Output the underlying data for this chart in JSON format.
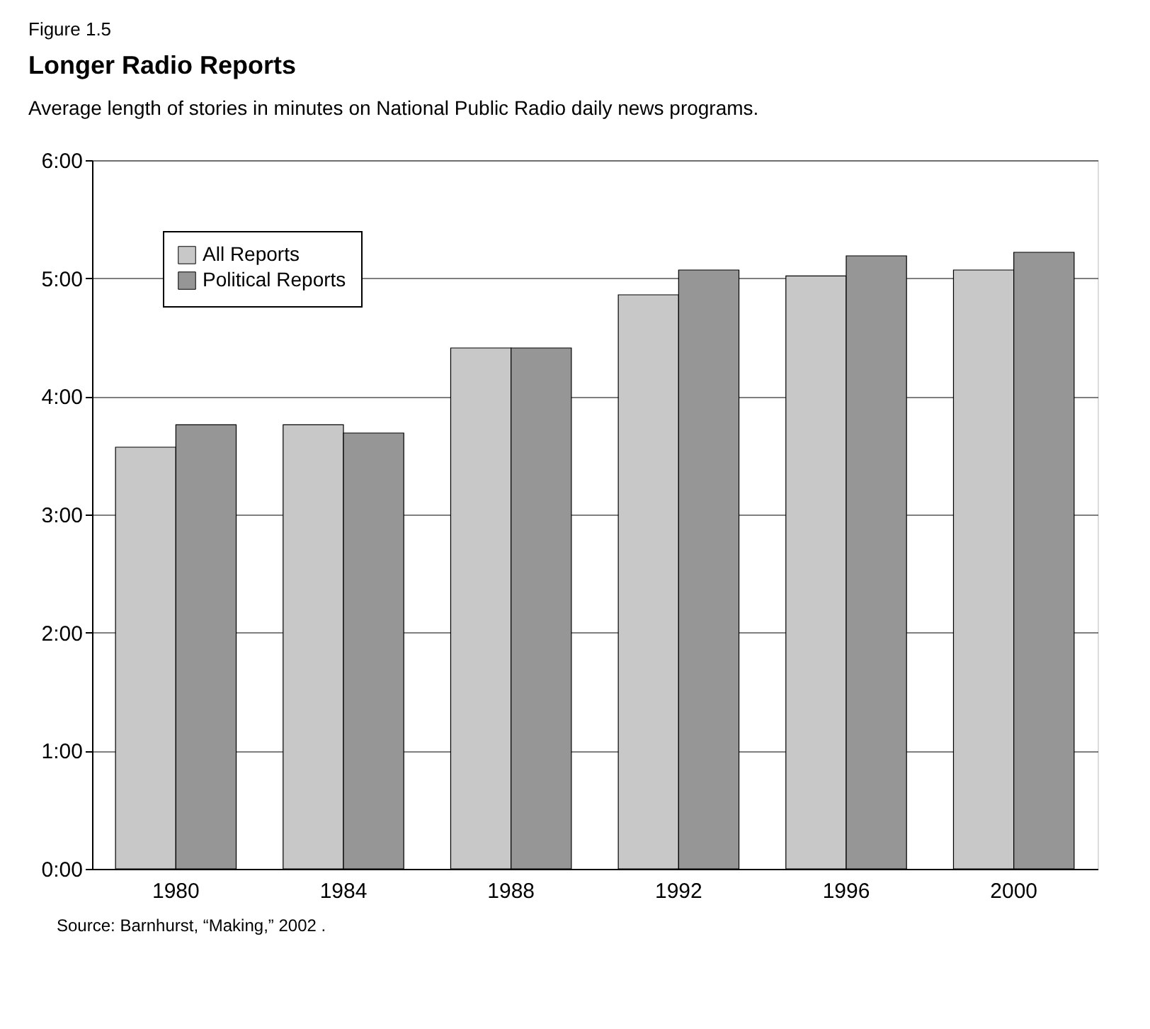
{
  "chart_data": {
    "type": "bar",
    "title": "Longer Radio Reports",
    "subtitle": "Average length of stories in minutes on National Public Radio daily news programs.",
    "annotations": [
      "Figure 1.5",
      "Source: Barnhurst, “Making,” 2002 ."
    ],
    "categories": [
      "1980",
      "1984",
      "1988",
      "1992",
      "1996",
      "2000"
    ],
    "series": [
      {
        "name": "All Reports",
        "color": "#c8c8c8",
        "values": [
          3.57,
          3.76,
          4.41,
          4.86,
          5.02,
          5.07
        ]
      },
      {
        "name": "Political Reports",
        "color": "#969696",
        "values": [
          3.76,
          3.69,
          4.41,
          5.07,
          5.19,
          5.22
        ]
      }
    ],
    "ylim": [
      0,
      6
    ],
    "yticks": [
      {
        "value": 0,
        "label": "0:00"
      },
      {
        "value": 1,
        "label": "1:00"
      },
      {
        "value": 2,
        "label": "2:00"
      },
      {
        "value": 3,
        "label": "3:00"
      },
      {
        "value": 4,
        "label": "4:00"
      },
      {
        "value": 5,
        "label": "5:00"
      },
      {
        "value": 6,
        "label": "6:00"
      }
    ],
    "grid": "y",
    "legend": "top left"
  }
}
